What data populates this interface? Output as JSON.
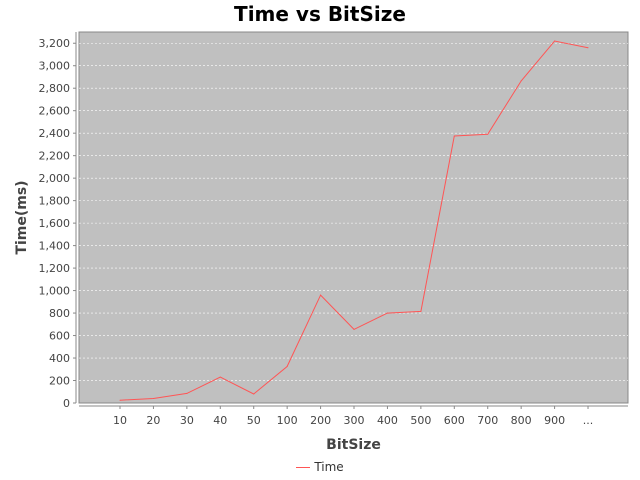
{
  "chart_data": {
    "type": "line",
    "title": "Time vs BitSize",
    "xlabel": "BitSize",
    "ylabel": "Time(ms)",
    "categories": [
      "10",
      "20",
      "30",
      "40",
      "50",
      "100",
      "200",
      "300",
      "400",
      "500",
      "600",
      "700",
      "800",
      "900",
      "..."
    ],
    "series": [
      {
        "name": "Time",
        "color": "#ff5555",
        "values": [
          25,
          40,
          85,
          230,
          80,
          325,
          960,
          655,
          800,
          815,
          2375,
          2390,
          2865,
          3220,
          3160
        ]
      }
    ],
    "ylim": [
      0,
      3300
    ],
    "yticks": [
      0,
      200,
      400,
      600,
      800,
      1000,
      1200,
      1400,
      1600,
      1800,
      2000,
      2200,
      2400,
      2600,
      2800,
      3000,
      3200
    ],
    "ytick_labels": [
      "0",
      "200",
      "400",
      "600",
      "800",
      "1,000",
      "1,200",
      "1,400",
      "1,600",
      "1,800",
      "2,000",
      "2,200",
      "2,400",
      "2,600",
      "2,800",
      "3,000",
      "3,200"
    ],
    "grid": true,
    "legend": "bottom",
    "plot_background": "#c0c0c0",
    "gridline_color": "#ffffff"
  }
}
